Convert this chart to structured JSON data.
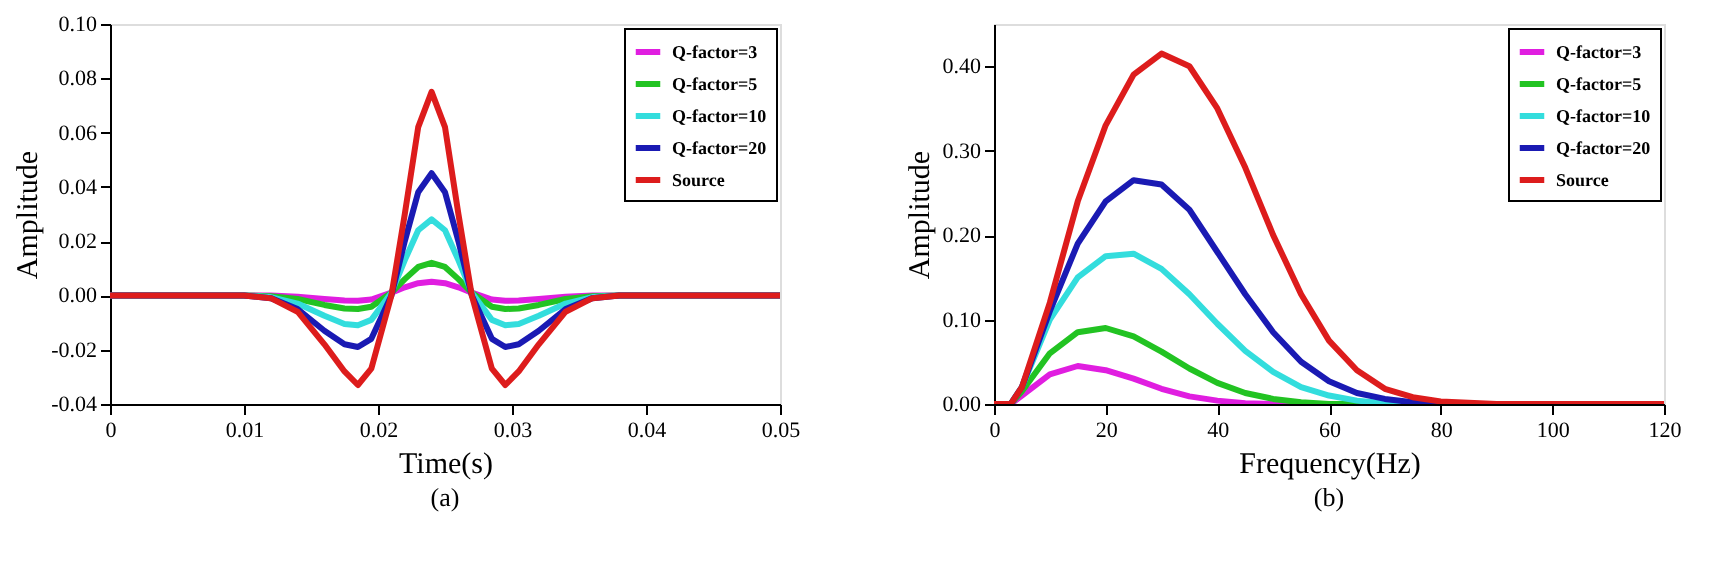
{
  "chart_data": [
    {
      "type": "line",
      "xlabel": "Time(s)",
      "ylabel": "Amplitude",
      "annotations": [
        "(a)"
      ],
      "legend": "top right",
      "grid": false,
      "marker": "none",
      "line_style": "solid",
      "xlim": [
        0,
        0.05
      ],
      "xticks": [
        0,
        0.01,
        0.02,
        0.03,
        0.04,
        0.05
      ],
      "ylim": [
        -0.04,
        0.1
      ],
      "yticks": [
        {
          "value": -0.04,
          "label": "-0.04"
        },
        {
          "value": -0.02,
          "label": "-0.02"
        },
        {
          "value": 0,
          "label": "0.00"
        },
        {
          "value": 0.02,
          "label": "0.02"
        },
        {
          "value": 0.04,
          "label": "0.04"
        },
        {
          "value": 0.06,
          "label": "0.06"
        },
        {
          "value": 0.08,
          "label": "0.08"
        },
        {
          "value": 0.1,
          "label": "0.10"
        }
      ],
      "x": [
        0,
        0.01,
        0.012,
        0.014,
        0.016,
        0.0175,
        0.0185,
        0.0195,
        0.021,
        0.022,
        0.023,
        0.024,
        0.025,
        0.026,
        0.027,
        0.0285,
        0.0295,
        0.0305,
        0.032,
        0.034,
        0.036,
        0.038,
        0.05
      ],
      "series": [
        {
          "name": "Q-factor=3",
          "color": "#e01ee0",
          "values": [
            0,
            0,
            0,
            -0.0005,
            -0.0013,
            -0.0019,
            -0.002,
            -0.0015,
            0.001,
            0.003,
            0.0045,
            0.005,
            0.0045,
            0.003,
            0.001,
            -0.0015,
            -0.002,
            -0.0019,
            -0.0013,
            -0.0005,
            0,
            0,
            0
          ]
        },
        {
          "name": "Q-factor=5",
          "color": "#22c322",
          "values": [
            0,
            0,
            -0.0003,
            -0.0013,
            -0.0035,
            -0.0048,
            -0.005,
            -0.0042,
            0.001,
            0.006,
            0.0105,
            0.012,
            0.0105,
            0.006,
            0.001,
            -0.0042,
            -0.005,
            -0.0048,
            -0.0035,
            -0.0013,
            -0.0003,
            0,
            0
          ]
        },
        {
          "name": "Q-factor=10",
          "color": "#33dddd",
          "values": [
            0,
            0,
            -0.0006,
            -0.003,
            -0.0075,
            -0.0105,
            -0.011,
            -0.009,
            0.001,
            0.013,
            0.024,
            0.028,
            0.024,
            0.013,
            0.001,
            -0.009,
            -0.011,
            -0.0105,
            -0.0075,
            -0.003,
            -0.0006,
            0,
            0
          ]
        },
        {
          "name": "Q-factor=20",
          "color": "#1a1ab3",
          "values": [
            0,
            0,
            -0.001,
            -0.005,
            -0.013,
            -0.018,
            -0.019,
            -0.016,
            0,
            0.02,
            0.038,
            0.045,
            0.038,
            0.02,
            0,
            -0.016,
            -0.019,
            -0.018,
            -0.013,
            -0.005,
            -0.001,
            0,
            0
          ]
        },
        {
          "name": "Source",
          "color": "#dd1c1c",
          "values": [
            0,
            0,
            -0.001,
            -0.006,
            -0.018,
            -0.028,
            -0.033,
            -0.027,
            0,
            0.03,
            0.062,
            0.075,
            0.062,
            0.03,
            0,
            -0.027,
            -0.033,
            -0.028,
            -0.018,
            -0.006,
            -0.001,
            0,
            0
          ]
        }
      ]
    },
    {
      "type": "line",
      "xlabel": "Frequency(Hz)",
      "ylabel": "Amplitude",
      "annotations": [
        "(b)"
      ],
      "legend": "top right",
      "grid": false,
      "marker": "none",
      "line_style": "solid",
      "xlim": [
        0,
        120
      ],
      "xticks": [
        0,
        20,
        40,
        60,
        80,
        100,
        120
      ],
      "ylim": [
        0,
        0.45
      ],
      "yticks": [
        {
          "value": 0,
          "label": "0.00"
        },
        {
          "value": 0.1,
          "label": "0.10"
        },
        {
          "value": 0.2,
          "label": "0.20"
        },
        {
          "value": 0.3,
          "label": "0.30"
        },
        {
          "value": 0.4,
          "label": "0.40"
        }
      ],
      "x": [
        0,
        3,
        5,
        10,
        15,
        20,
        25,
        30,
        35,
        40,
        45,
        50,
        55,
        60,
        65,
        70,
        75,
        80,
        90,
        120
      ],
      "series": [
        {
          "name": "Q-factor=3",
          "color": "#e01ee0",
          "values": [
            0,
            0,
            0.01,
            0.035,
            0.045,
            0.04,
            0.03,
            0.018,
            0.009,
            0.004,
            0.001,
            0,
            0,
            null,
            null,
            null,
            null,
            null,
            null,
            null
          ]
        },
        {
          "name": "Q-factor=5",
          "color": "#22c322",
          "values": [
            0,
            0,
            0.015,
            0.06,
            0.085,
            0.09,
            0.08,
            0.062,
            0.042,
            0.025,
            0.013,
            0.006,
            0.002,
            0,
            0,
            0,
            null,
            null,
            null,
            null
          ]
        },
        {
          "name": "Q-factor=10",
          "color": "#33dddd",
          "values": [
            0,
            0,
            0.02,
            0.1,
            0.15,
            0.175,
            0.178,
            0.16,
            0.13,
            0.095,
            0.063,
            0.038,
            0.02,
            0.01,
            0.004,
            0.001,
            0,
            0,
            null,
            null
          ]
        },
        {
          "name": "Q-factor=20",
          "color": "#1a1ab3",
          "values": [
            0,
            0,
            0.02,
            0.11,
            0.19,
            0.24,
            0.265,
            0.26,
            0.23,
            0.18,
            0.13,
            0.085,
            0.05,
            0.027,
            0.013,
            0.006,
            0.002,
            0,
            0,
            0
          ]
        },
        {
          "name": "Source",
          "color": "#dd1c1c",
          "values": [
            0,
            0,
            0.02,
            0.12,
            0.24,
            0.33,
            0.39,
            0.415,
            0.4,
            0.35,
            0.28,
            0.2,
            0.13,
            0.075,
            0.04,
            0.018,
            0.008,
            0.003,
            0,
            0
          ]
        }
      ]
    }
  ]
}
